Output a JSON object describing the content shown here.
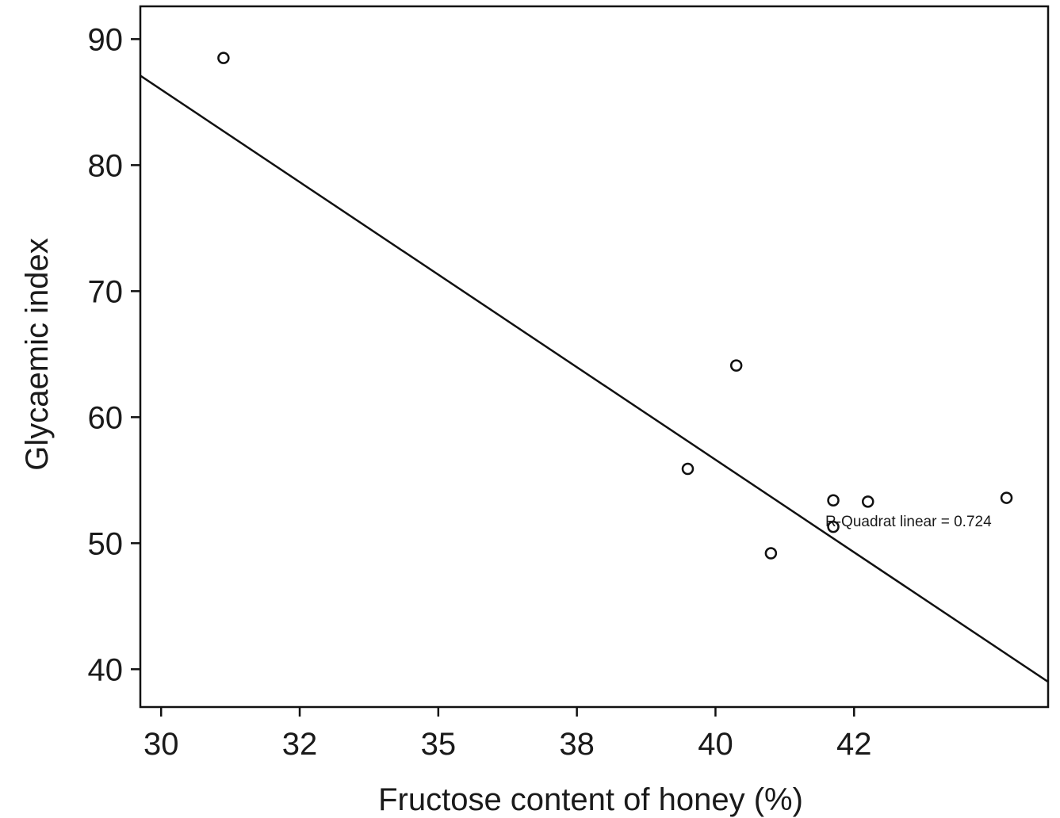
{
  "chart_data": {
    "type": "scatter",
    "title": "",
    "xlabel": "Fructose content of honey (%)",
    "ylabel": "Glycaemic index",
    "x_tick_labels": [
      "30",
      "32",
      "35",
      "38",
      "40",
      "42"
    ],
    "y_ticks": [
      40,
      50,
      60,
      70,
      80,
      90
    ],
    "xlim": [
      29.7,
      42.8
    ],
    "ylim": [
      37.0,
      92.6
    ],
    "grid": false,
    "points": [
      {
        "x": 30.9,
        "y": 88.5
      },
      {
        "x": 37.6,
        "y": 55.9
      },
      {
        "x": 38.3,
        "y": 64.1
      },
      {
        "x": 38.8,
        "y": 49.2
      },
      {
        "x": 39.7,
        "y": 53.4
      },
      {
        "x": 39.7,
        "y": 51.3
      },
      {
        "x": 40.2,
        "y": 53.3
      },
      {
        "x": 42.2,
        "y": 53.6
      }
    ],
    "fit_line": {
      "type": "linear",
      "start": {
        "x": 29.7,
        "y": 87.1
      },
      "end": {
        "x": 42.8,
        "y": 39.0
      }
    },
    "annotation": "R-Quadrat linear = 0.724"
  }
}
